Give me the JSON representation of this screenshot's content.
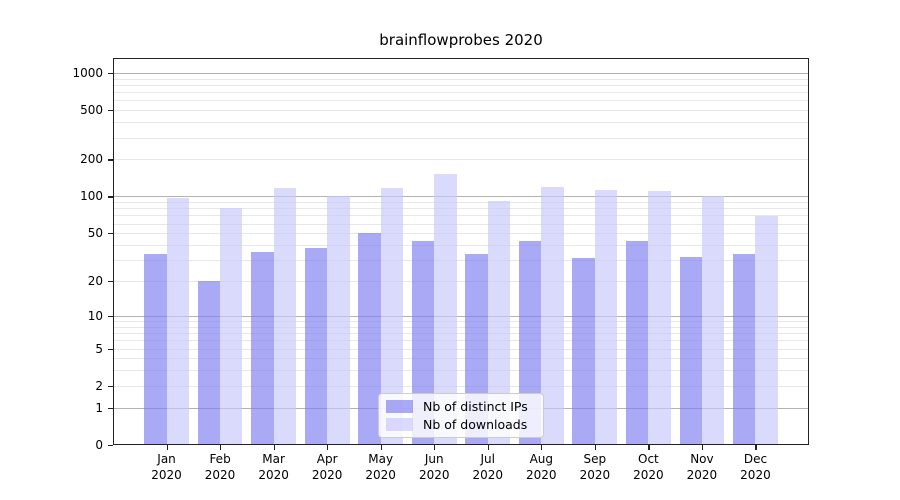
{
  "title": "brainflowprobes 2020",
  "chart_data": {
    "type": "bar",
    "title": "brainflowprobes 2020",
    "categories": [
      "Jan",
      "Feb",
      "Mar",
      "Apr",
      "May",
      "Jun",
      "Jul",
      "Aug",
      "Sep",
      "Oct",
      "Nov",
      "Dec"
    ],
    "year_label": "2020",
    "series": [
      {
        "name": "Nb of distinct IPs",
        "values": [
          34,
          20,
          35,
          38,
          50,
          43,
          34,
          43,
          31,
          43,
          32,
          34
        ],
        "color": "#7c7cf0",
        "rgba": "rgba(124,124,240,0.66)"
      },
      {
        "name": "Nb of downloads",
        "values": [
          97,
          81,
          118,
          100,
          117,
          151,
          91,
          119,
          112,
          111,
          101,
          69
        ],
        "color": "#c7c7fa",
        "rgba": "rgba(199,199,250,0.66)"
      }
    ],
    "yscale": "log1p",
    "ylim": [
      0,
      1320
    ],
    "y_ticks": [
      1000,
      500,
      200,
      100,
      50,
      20,
      10,
      5,
      2,
      1,
      0
    ],
    "y_major_gridlines": [
      1,
      10,
      100,
      1000
    ],
    "y_minor_gridlines": [
      2,
      3,
      4,
      5,
      6,
      7,
      8,
      9,
      20,
      30,
      40,
      50,
      60,
      70,
      80,
      90,
      200,
      300,
      400,
      500,
      600,
      700,
      800,
      900
    ],
    "grid": true,
    "legend_position": "inside lower-center"
  },
  "colors": {
    "background": "#ffffff",
    "bar_distinct_ips": "#a9a9f5",
    "bar_downloads": "#dbdbfa",
    "major_gridline": "#b3b3b3",
    "minor_gridline": "#e8e8e8",
    "spine": "#222222",
    "text": "#000000",
    "legend_border": "#cccccc",
    "legend_background": "rgba(255,255,255,0.8)"
  }
}
